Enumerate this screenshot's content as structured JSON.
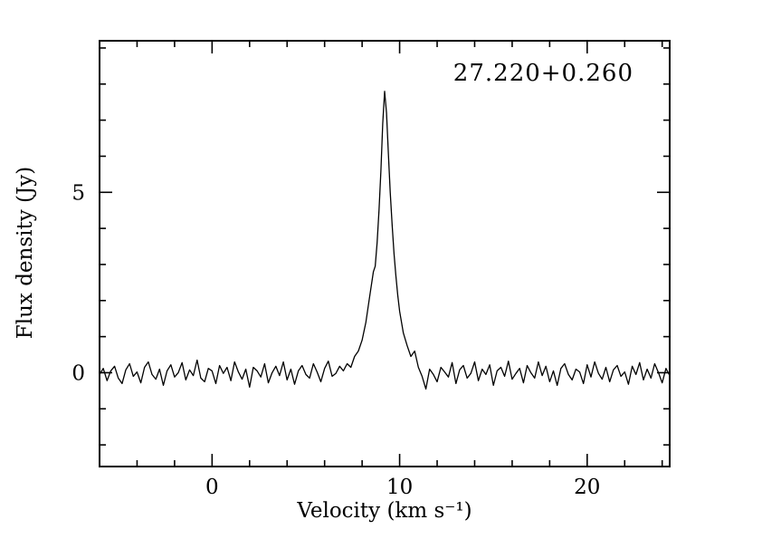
{
  "chart_data": {
    "type": "line",
    "annotation": "27.220+0.260",
    "xlabel": "Velocity (km s⁻¹)",
    "ylabel": "Flux density (Jy)",
    "xlim": [
      -6.0,
      24.4
    ],
    "ylim": [
      -2.6,
      9.2
    ],
    "xticks": {
      "major": [
        0,
        10,
        20
      ],
      "labels": [
        "0",
        "10",
        "20"
      ],
      "minor_step": 2
    },
    "yticks": {
      "major": [
        0,
        5
      ],
      "labels": [
        "0",
        "5"
      ],
      "minor_step": 1
    },
    "grid": false,
    "legend": "none",
    "line_color": "#000000",
    "frame_color": "#000000",
    "background": "#ffffff",
    "series": [
      {
        "name": "spectrum",
        "points": [
          [
            -6.0,
            -0.05
          ],
          [
            -5.8,
            0.12
          ],
          [
            -5.6,
            -0.22
          ],
          [
            -5.4,
            0.05
          ],
          [
            -5.2,
            0.18
          ],
          [
            -5.0,
            -0.15
          ],
          [
            -4.8,
            -0.3
          ],
          [
            -4.6,
            0.08
          ],
          [
            -4.4,
            0.25
          ],
          [
            -4.2,
            -0.1
          ],
          [
            -4.0,
            0.02
          ],
          [
            -3.8,
            -0.28
          ],
          [
            -3.6,
            0.15
          ],
          [
            -3.4,
            0.3
          ],
          [
            -3.2,
            -0.05
          ],
          [
            -3.0,
            -0.18
          ],
          [
            -2.8,
            0.1
          ],
          [
            -2.6,
            -0.35
          ],
          [
            -2.4,
            0.05
          ],
          [
            -2.2,
            0.22
          ],
          [
            -2.0,
            -0.12
          ],
          [
            -1.8,
            0.0
          ],
          [
            -1.6,
            0.28
          ],
          [
            -1.4,
            -0.2
          ],
          [
            -1.2,
            0.08
          ],
          [
            -1.0,
            -0.08
          ],
          [
            -0.8,
            0.35
          ],
          [
            -0.6,
            -0.15
          ],
          [
            -0.4,
            -0.25
          ],
          [
            -0.2,
            0.12
          ],
          [
            0.0,
            0.05
          ],
          [
            0.2,
            -0.3
          ],
          [
            0.4,
            0.2
          ],
          [
            0.6,
            -0.02
          ],
          [
            0.8,
            0.15
          ],
          [
            1.0,
            -0.22
          ],
          [
            1.2,
            0.3
          ],
          [
            1.4,
            0.02
          ],
          [
            1.6,
            -0.18
          ],
          [
            1.8,
            0.1
          ],
          [
            2.0,
            -0.4
          ],
          [
            2.2,
            0.15
          ],
          [
            2.4,
            0.05
          ],
          [
            2.6,
            -0.12
          ],
          [
            2.8,
            0.25
          ],
          [
            3.0,
            -0.28
          ],
          [
            3.2,
            0.0
          ],
          [
            3.4,
            0.18
          ],
          [
            3.6,
            -0.08
          ],
          [
            3.8,
            0.3
          ],
          [
            4.0,
            -0.2
          ],
          [
            4.2,
            0.1
          ],
          [
            4.4,
            -0.32
          ],
          [
            4.6,
            0.05
          ],
          [
            4.8,
            0.2
          ],
          [
            5.0,
            -0.05
          ],
          [
            5.2,
            -0.15
          ],
          [
            5.4,
            0.25
          ],
          [
            5.6,
            0.02
          ],
          [
            5.8,
            -0.25
          ],
          [
            6.0,
            0.12
          ],
          [
            6.2,
            0.32
          ],
          [
            6.4,
            -0.1
          ],
          [
            6.6,
            -0.02
          ],
          [
            6.8,
            0.18
          ],
          [
            7.0,
            0.05
          ],
          [
            7.2,
            0.25
          ],
          [
            7.4,
            0.15
          ],
          [
            7.6,
            0.45
          ],
          [
            7.8,
            0.6
          ],
          [
            8.0,
            0.9
          ],
          [
            8.2,
            1.4
          ],
          [
            8.4,
            2.1
          ],
          [
            8.6,
            2.8
          ],
          [
            8.7,
            2.95
          ],
          [
            8.8,
            3.6
          ],
          [
            8.9,
            4.5
          ],
          [
            9.0,
            5.6
          ],
          [
            9.1,
            6.9
          ],
          [
            9.2,
            7.8
          ],
          [
            9.3,
            7.2
          ],
          [
            9.4,
            6.1
          ],
          [
            9.5,
            5.0
          ],
          [
            9.6,
            4.1
          ],
          [
            9.7,
            3.3
          ],
          [
            9.8,
            2.7
          ],
          [
            9.9,
            2.15
          ],
          [
            10.0,
            1.7
          ],
          [
            10.2,
            1.1
          ],
          [
            10.4,
            0.75
          ],
          [
            10.6,
            0.45
          ],
          [
            10.8,
            0.6
          ],
          [
            11.0,
            0.15
          ],
          [
            11.2,
            -0.1
          ],
          [
            11.4,
            -0.45
          ],
          [
            11.6,
            0.1
          ],
          [
            11.8,
            -0.05
          ],
          [
            12.0,
            -0.25
          ],
          [
            12.2,
            0.15
          ],
          [
            12.4,
            0.02
          ],
          [
            12.6,
            -0.12
          ],
          [
            12.8,
            0.28
          ],
          [
            13.0,
            -0.3
          ],
          [
            13.2,
            0.08
          ],
          [
            13.4,
            0.2
          ],
          [
            13.6,
            -0.15
          ],
          [
            13.8,
            -0.02
          ],
          [
            14.0,
            0.3
          ],
          [
            14.2,
            -0.22
          ],
          [
            14.4,
            0.1
          ],
          [
            14.6,
            -0.05
          ],
          [
            14.8,
            0.22
          ],
          [
            15.0,
            -0.35
          ],
          [
            15.2,
            0.05
          ],
          [
            15.4,
            0.15
          ],
          [
            15.6,
            -0.1
          ],
          [
            15.8,
            0.32
          ],
          [
            16.0,
            -0.18
          ],
          [
            16.2,
            -0.02
          ],
          [
            16.4,
            0.12
          ],
          [
            16.6,
            -0.28
          ],
          [
            16.8,
            0.2
          ],
          [
            17.0,
            0.0
          ],
          [
            17.2,
            -0.15
          ],
          [
            17.4,
            0.3
          ],
          [
            17.6,
            -0.08
          ],
          [
            17.8,
            0.18
          ],
          [
            18.0,
            -0.25
          ],
          [
            18.2,
            0.05
          ],
          [
            18.4,
            -0.35
          ],
          [
            18.6,
            0.12
          ],
          [
            18.8,
            0.25
          ],
          [
            19.0,
            -0.05
          ],
          [
            19.2,
            -0.2
          ],
          [
            19.4,
            0.1
          ],
          [
            19.6,
            0.02
          ],
          [
            19.8,
            -0.3
          ],
          [
            20.0,
            0.22
          ],
          [
            20.2,
            -0.12
          ],
          [
            20.4,
            0.3
          ],
          [
            20.6,
            -0.02
          ],
          [
            20.8,
            -0.18
          ],
          [
            21.0,
            0.15
          ],
          [
            21.2,
            -0.25
          ],
          [
            21.4,
            0.08
          ],
          [
            21.6,
            0.2
          ],
          [
            21.8,
            -0.1
          ],
          [
            22.0,
            0.02
          ],
          [
            22.2,
            -0.32
          ],
          [
            22.4,
            0.18
          ],
          [
            22.6,
            -0.05
          ],
          [
            22.8,
            0.28
          ],
          [
            23.0,
            -0.2
          ],
          [
            23.2,
            0.1
          ],
          [
            23.4,
            -0.15
          ],
          [
            23.6,
            0.25
          ],
          [
            23.8,
            0.0
          ],
          [
            24.0,
            -0.28
          ],
          [
            24.2,
            0.12
          ],
          [
            24.4,
            -0.08
          ]
        ]
      }
    ]
  }
}
